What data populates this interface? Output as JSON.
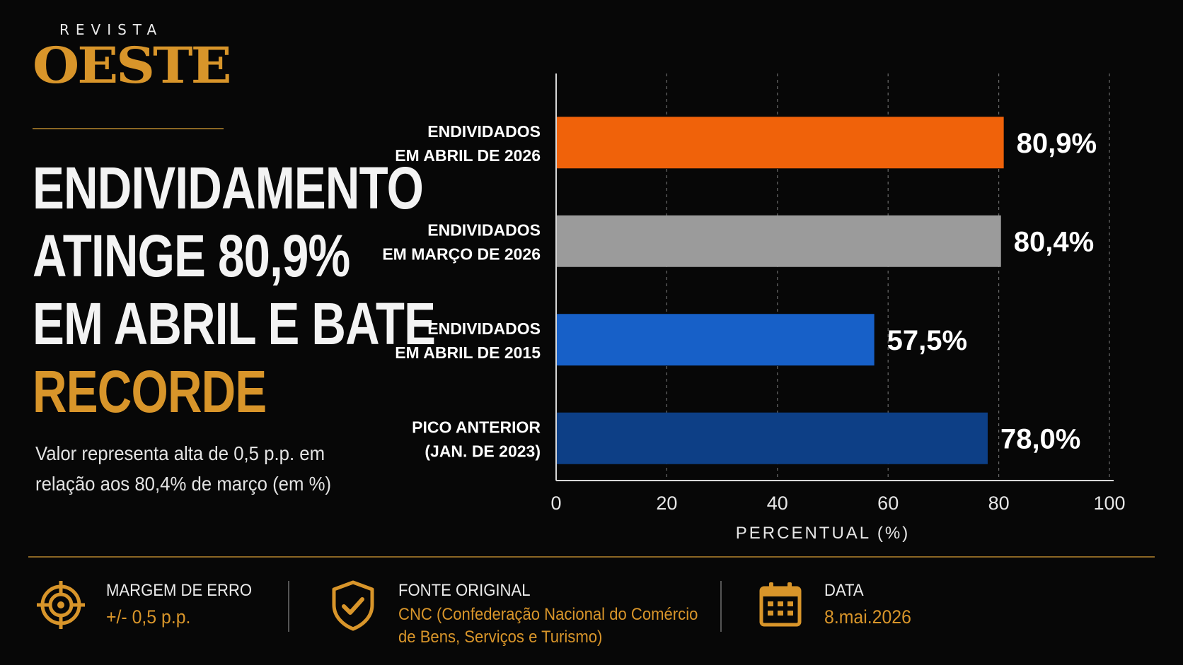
{
  "brand": {
    "top": "REVISTA",
    "logo": "OESTE"
  },
  "headline": {
    "lines": [
      "ENDIVIDAMENTO",
      "ATINGE 80,9%",
      "EM ABRIL E BATE"
    ],
    "highlight": "RECORDE"
  },
  "subtitle": {
    "line1": "Valor representa alta de 0,5 p.p. em",
    "line2": "relação aos 80,4% de março (em %)"
  },
  "chart_data": {
    "type": "bar",
    "orientation": "horizontal",
    "categories": [
      [
        "ENDIVIDADOS",
        "EM ABRIL DE 2026"
      ],
      [
        "ENDIVIDADOS",
        "EM MARÇO DE 2026"
      ],
      [
        "ENDIVIDADOS",
        "EM ABRIL DE 2015"
      ],
      [
        "PICO ANTERIOR",
        "(JAN. DE 2023)"
      ]
    ],
    "values": [
      80.9,
      80.4,
      57.5,
      78.0
    ],
    "value_labels": [
      "80,9%",
      "80,4%",
      "57,5%",
      "78,0%"
    ],
    "colors": [
      "#f0620a",
      "#9b9b9b",
      "#1760c8",
      "#0d3f86"
    ],
    "xlim": [
      0,
      100
    ],
    "xticks": [
      0,
      20,
      40,
      60,
      80,
      100
    ],
    "xlabel": "PERCENTUAL (%)",
    "grid": "vertical dashed"
  },
  "footer": {
    "items": [
      {
        "icon": "target-icon",
        "label": "MARGEM DE ERRO",
        "value": "+/- 0,5 p.p."
      },
      {
        "icon": "shield-check-icon",
        "label": "FONTE ORIGINAL",
        "value_line1": "CNC (Confederação Nacional do Comércio",
        "value_line2": "de Bens, Serviços e Turismo)"
      },
      {
        "icon": "calendar-icon",
        "label": "DATA",
        "value": "8.mai.2026"
      }
    ]
  },
  "colors": {
    "accent": "#d8952a",
    "background": "#070707",
    "text": "#ffffff"
  }
}
